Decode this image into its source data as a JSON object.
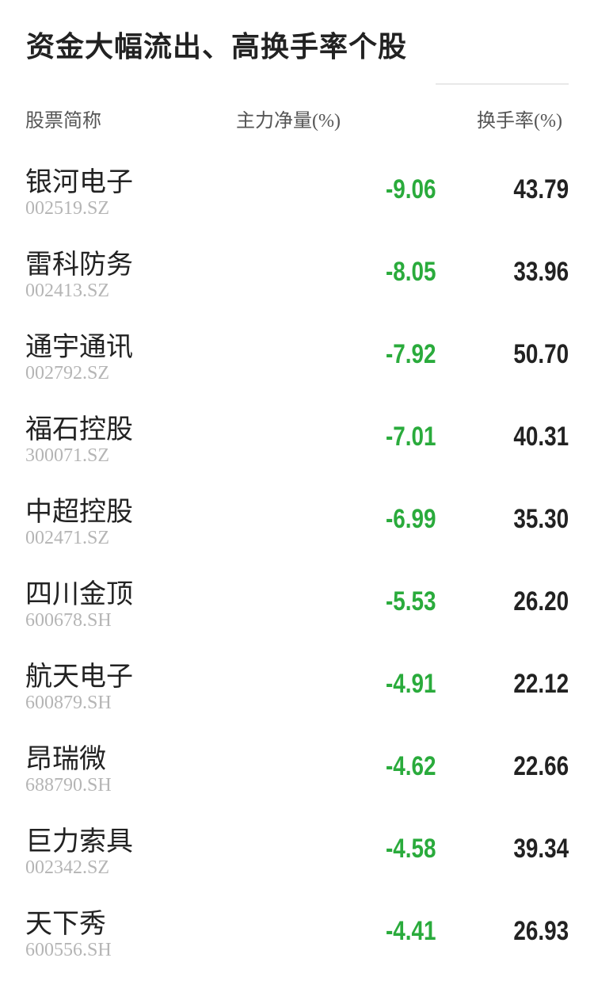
{
  "title": "资金大幅流出、高换手率个股",
  "colors": {
    "negative": "#2aab3c",
    "text": "#222222"
  },
  "headers": {
    "name": "股票简称",
    "flow": "主力净量",
    "turnover": "换手率",
    "unit": "(%)"
  },
  "rows": [
    {
      "name": "银河电子",
      "code": "002519.SZ",
      "flow": "-9.06",
      "turnover": "43.79"
    },
    {
      "name": "雷科防务",
      "code": "002413.SZ",
      "flow": "-8.05",
      "turnover": "33.96"
    },
    {
      "name": "通宇通讯",
      "code": "002792.SZ",
      "flow": "-7.92",
      "turnover": "50.70"
    },
    {
      "name": "福石控股",
      "code": "300071.SZ",
      "flow": "-7.01",
      "turnover": "40.31"
    },
    {
      "name": "中超控股",
      "code": "002471.SZ",
      "flow": "-6.99",
      "turnover": "35.30"
    },
    {
      "name": "四川金顶",
      "code": "600678.SH",
      "flow": "-5.53",
      "turnover": "26.20"
    },
    {
      "name": "航天电子",
      "code": "600879.SH",
      "flow": "-4.91",
      "turnover": "22.12"
    },
    {
      "name": "昂瑞微",
      "code": "688790.SH",
      "flow": "-4.62",
      "turnover": "22.66"
    },
    {
      "name": "巨力索具",
      "code": "002342.SZ",
      "flow": "-4.58",
      "turnover": "39.34"
    },
    {
      "name": "天下秀",
      "code": "600556.SH",
      "flow": "-4.41",
      "turnover": "26.93"
    }
  ]
}
